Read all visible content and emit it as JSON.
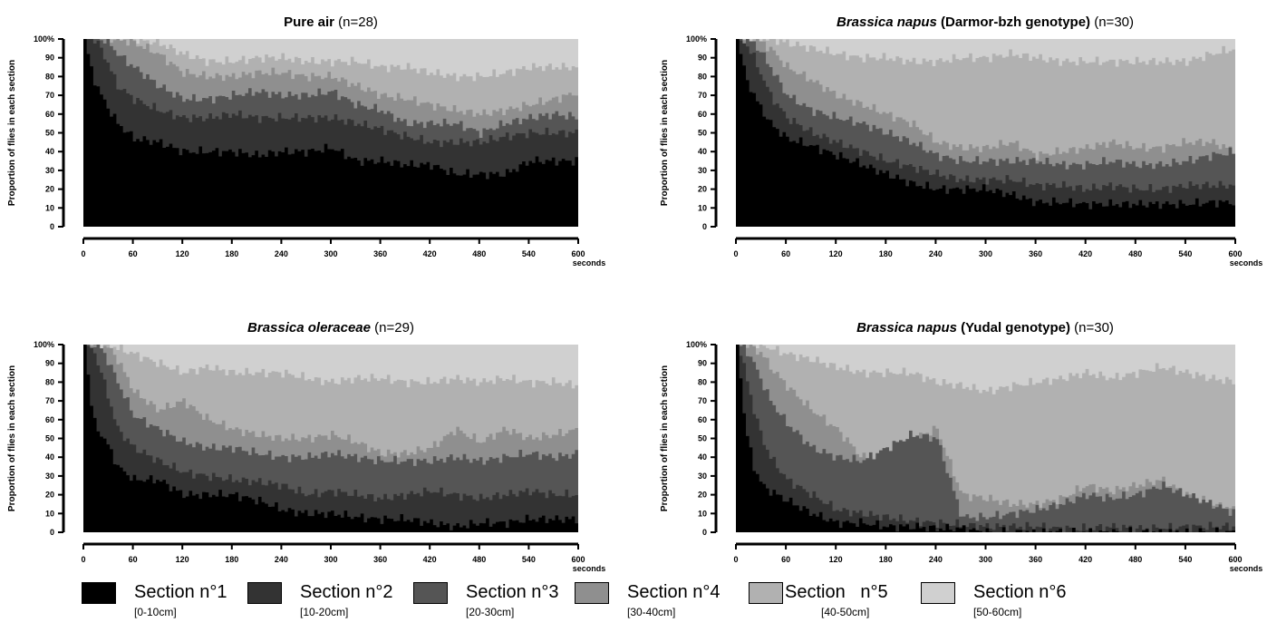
{
  "colors": {
    "section1": "#000000",
    "section2": "#333333",
    "section3": "#555555",
    "section4": "#8f8f8f",
    "section5": "#b1b1b1",
    "section6": "#d0d0d0"
  },
  "legend": [
    {
      "name": "Section n°1",
      "range": "[0-10cm]"
    },
    {
      "name": "Section n°2",
      "range": "[10-20cm]"
    },
    {
      "name": "Section n°3",
      "range": "[20-30cm]"
    },
    {
      "name": "Section n°4",
      "range": "[30-40cm]"
    },
    {
      "name": "Section   n°5",
      "range": "[40-50cm]"
    },
    {
      "name": "Section n°6",
      "range": "[50-60cm]"
    }
  ],
  "chart_data": [
    {
      "type": "area",
      "stacked": true,
      "title_italic": "",
      "title_bold": "Pure air",
      "title_n": "(n=28)",
      "ylabel": "Proportion of flies in each section",
      "xlabel": "seconds",
      "x_ticks": [
        0,
        60,
        120,
        180,
        240,
        300,
        360,
        420,
        480,
        540,
        600
      ],
      "y_ticks": [
        "0",
        "10",
        "20",
        "30",
        "40",
        "50",
        "60",
        "70",
        "80",
        "90",
        "100%"
      ],
      "xlim": [
        0,
        600
      ],
      "ylim": [
        0,
        100
      ],
      "x": [
        0,
        10,
        20,
        30,
        40,
        60,
        90,
        120,
        150,
        180,
        210,
        240,
        270,
        300,
        330,
        360,
        390,
        420,
        450,
        480,
        510,
        540,
        570,
        600
      ],
      "cumulative_series": [
        {
          "name": "Section n°1",
          "values": [
            100,
            80,
            70,
            62,
            55,
            47,
            45,
            40,
            40,
            40,
            38,
            40,
            40,
            42,
            35,
            35,
            33,
            33,
            28,
            28,
            28,
            35,
            35,
            35
          ]
        },
        {
          "name": "Section n°2",
          "values": [
            100,
            100,
            95,
            85,
            75,
            68,
            62,
            58,
            58,
            60,
            58,
            58,
            58,
            58,
            55,
            52,
            48,
            45,
            45,
            45,
            48,
            50,
            50,
            50
          ]
        },
        {
          "name": "Section n°3",
          "values": [
            100,
            100,
            100,
            98,
            92,
            85,
            75,
            68,
            68,
            70,
            72,
            70,
            70,
            72,
            65,
            62,
            55,
            55,
            55,
            50,
            55,
            58,
            60,
            58
          ]
        },
        {
          "name": "Section n°4",
          "values": [
            100,
            100,
            100,
            100,
            100,
            98,
            92,
            82,
            80,
            80,
            82,
            82,
            80,
            80,
            75,
            70,
            68,
            65,
            62,
            60,
            62,
            65,
            68,
            72
          ]
        },
        {
          "name": "Section n°5",
          "values": [
            100,
            100,
            100,
            100,
            100,
            100,
            98,
            92,
            88,
            88,
            90,
            90,
            88,
            88,
            88,
            85,
            85,
            82,
            80,
            80,
            82,
            85,
            85,
            85
          ]
        },
        {
          "name": "Section n°6",
          "values": [
            100,
            100,
            100,
            100,
            100,
            100,
            100,
            100,
            100,
            100,
            100,
            100,
            100,
            100,
            100,
            100,
            100,
            100,
            100,
            100,
            100,
            100,
            100,
            100
          ]
        }
      ]
    },
    {
      "type": "area",
      "stacked": true,
      "title_italic": "Brassica napus",
      "title_bold": "(Darmor-bzh genotype)",
      "title_n": "(n=30)",
      "ylabel": "Proportion of flies in each section",
      "xlabel": "seconds",
      "x_ticks": [
        0,
        60,
        120,
        180,
        240,
        300,
        360,
        420,
        480,
        540,
        600
      ],
      "y_ticks": [
        "0",
        "10",
        "20",
        "30",
        "40",
        "50",
        "60",
        "70",
        "80",
        "90",
        "100%"
      ],
      "xlim": [
        0,
        600
      ],
      "ylim": [
        0,
        100
      ],
      "x": [
        0,
        10,
        20,
        30,
        40,
        60,
        90,
        120,
        150,
        180,
        210,
        240,
        270,
        300,
        330,
        360,
        390,
        420,
        450,
        480,
        510,
        540,
        570,
        600
      ],
      "cumulative_series": [
        {
          "name": "Section n°1",
          "values": [
            100,
            80,
            70,
            62,
            55,
            47,
            43,
            38,
            33,
            28,
            23,
            20,
            20,
            20,
            17,
            13,
            13,
            12,
            12,
            12,
            12,
            12,
            13,
            13
          ]
        },
        {
          "name": "Section n°2",
          "values": [
            100,
            98,
            90,
            80,
            70,
            58,
            50,
            45,
            40,
            35,
            32,
            28,
            25,
            25,
            25,
            22,
            22,
            20,
            22,
            20,
            20,
            22,
            22,
            22
          ]
        },
        {
          "name": "Section n°3",
          "values": [
            100,
            100,
            98,
            92,
            85,
            70,
            62,
            58,
            55,
            50,
            45,
            38,
            35,
            35,
            35,
            35,
            33,
            33,
            35,
            33,
            33,
            35,
            38,
            40
          ]
        },
        {
          "name": "Section n°4",
          "values": [
            100,
            100,
            100,
            98,
            95,
            85,
            78,
            70,
            65,
            60,
            55,
            45,
            42,
            42,
            45,
            38,
            40,
            42,
            45,
            42,
            42,
            45,
            45,
            40
          ]
        },
        {
          "name": "Section n°5",
          "values": [
            100,
            100,
            100,
            100,
            100,
            98,
            95,
            92,
            90,
            90,
            88,
            88,
            90,
            90,
            92,
            90,
            88,
            88,
            88,
            88,
            88,
            88,
            92,
            95
          ]
        },
        {
          "name": "Section n°6",
          "values": [
            100,
            100,
            100,
            100,
            100,
            100,
            100,
            100,
            100,
            100,
            100,
            100,
            100,
            100,
            100,
            100,
            100,
            100,
            100,
            100,
            100,
            100,
            100,
            100
          ]
        }
      ]
    },
    {
      "type": "area",
      "stacked": true,
      "title_italic": "Brassica oleraceae",
      "title_bold": "",
      "title_n": "(n=29)",
      "ylabel": "Proportion of flies in each section",
      "xlabel": "seconds",
      "x_ticks": [
        0,
        60,
        120,
        180,
        240,
        300,
        360,
        420,
        480,
        540,
        600
      ],
      "y_ticks": [
        "0",
        "10",
        "20",
        "30",
        "40",
        "50",
        "60",
        "70",
        "80",
        "90",
        "100%"
      ],
      "xlim": [
        0,
        600
      ],
      "ylim": [
        0,
        100
      ],
      "x": [
        0,
        10,
        20,
        30,
        40,
        60,
        90,
        120,
        150,
        180,
        210,
        240,
        270,
        300,
        330,
        360,
        390,
        420,
        450,
        480,
        510,
        540,
        570,
        600
      ],
      "cumulative_series": [
        {
          "name": "Section n°1",
          "values": [
            100,
            60,
            52,
            45,
            35,
            28,
            28,
            20,
            20,
            20,
            17,
            12,
            10,
            10,
            8,
            7,
            7,
            5,
            3,
            5,
            5,
            7,
            7,
            7
          ]
        },
        {
          "name": "Section n°2",
          "values": [
            100,
            98,
            85,
            70,
            55,
            45,
            38,
            32,
            30,
            28,
            27,
            25,
            20,
            22,
            20,
            18,
            20,
            22,
            20,
            18,
            20,
            22,
            20,
            20
          ]
        },
        {
          "name": "Section n°3",
          "values": [
            100,
            100,
            98,
            90,
            80,
            62,
            55,
            48,
            45,
            45,
            42,
            40,
            40,
            42,
            40,
            38,
            38,
            38,
            40,
            38,
            40,
            42,
            40,
            42
          ]
        },
        {
          "name": "Section n°4",
          "values": [
            100,
            100,
            100,
            98,
            92,
            75,
            65,
            70,
            60,
            55,
            52,
            50,
            50,
            52,
            48,
            42,
            42,
            45,
            55,
            48,
            55,
            50,
            52,
            55
          ]
        },
        {
          "name": "Section n°5",
          "values": [
            100,
            100,
            100,
            100,
            98,
            95,
            90,
            85,
            88,
            85,
            85,
            85,
            82,
            80,
            82,
            82,
            80,
            80,
            82,
            80,
            82,
            80,
            80,
            78
          ]
        },
        {
          "name": "Section n°6",
          "values": [
            100,
            100,
            100,
            100,
            100,
            100,
            100,
            100,
            100,
            100,
            100,
            100,
            100,
            100,
            100,
            100,
            100,
            100,
            100,
            100,
            100,
            100,
            100,
            100
          ]
        }
      ]
    },
    {
      "type": "area",
      "stacked": true,
      "title_italic": "Brassica napus",
      "title_bold": "(Yudal genotype)",
      "title_n": "(n=30)",
      "ylabel": "Proportion of flies in each section",
      "xlabel": "seconds",
      "x_ticks": [
        0,
        60,
        120,
        180,
        240,
        300,
        360,
        420,
        480,
        540,
        600
      ],
      "y_ticks": [
        "0",
        "10",
        "20",
        "30",
        "40",
        "50",
        "60",
        "70",
        "80",
        "90",
        "100%"
      ],
      "xlim": [
        0,
        600
      ],
      "ylim": [
        0,
        100
      ],
      "x": [
        0,
        10,
        20,
        30,
        40,
        60,
        90,
        120,
        150,
        180,
        210,
        240,
        270,
        300,
        330,
        360,
        390,
        420,
        450,
        480,
        510,
        540,
        570,
        600
      ],
      "cumulative_series": [
        {
          "name": "Section n°1",
          "values": [
            100,
            55,
            35,
            25,
            22,
            17,
            10,
            5,
            5,
            3,
            3,
            2,
            2,
            0,
            0,
            0,
            0,
            0,
            0,
            0,
            0,
            0,
            0,
            0
          ]
        },
        {
          "name": "Section n°2",
          "values": [
            100,
            85,
            65,
            50,
            40,
            28,
            20,
            12,
            10,
            8,
            6,
            5,
            4,
            3,
            3,
            3,
            2,
            2,
            3,
            2,
            2,
            3,
            3,
            3
          ]
        },
        {
          "name": "Section n°3",
          "values": [
            100,
            98,
            90,
            80,
            70,
            58,
            45,
            40,
            38,
            45,
            52,
            50,
            8,
            8,
            10,
            12,
            15,
            20,
            18,
            20,
            25,
            20,
            15,
            10
          ]
        },
        {
          "name": "Section n°4",
          "values": [
            100,
            100,
            98,
            95,
            88,
            78,
            65,
            55,
            40,
            38,
            50,
            55,
            20,
            18,
            15,
            15,
            18,
            25,
            22,
            25,
            28,
            20,
            15,
            12
          ]
        },
        {
          "name": "Section n°5",
          "values": [
            100,
            100,
            100,
            100,
            98,
            95,
            92,
            88,
            85,
            85,
            85,
            80,
            78,
            75,
            78,
            80,
            82,
            85,
            82,
            85,
            88,
            85,
            82,
            80
          ]
        },
        {
          "name": "Section n°6",
          "values": [
            100,
            100,
            100,
            100,
            100,
            100,
            100,
            100,
            100,
            100,
            100,
            100,
            100,
            100,
            100,
            100,
            100,
            100,
            100,
            100,
            100,
            100,
            100,
            100
          ]
        }
      ]
    }
  ]
}
